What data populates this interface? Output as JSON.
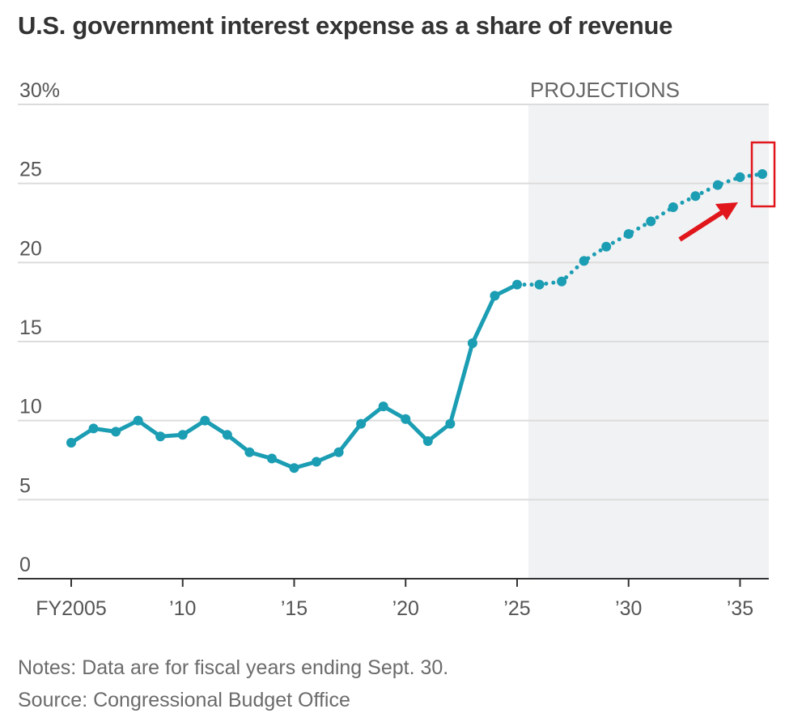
{
  "chart_data": {
    "type": "line",
    "title": "U.S. government interest expense as a share of revenue",
    "x": [
      2005,
      2006,
      2007,
      2008,
      2009,
      2010,
      2011,
      2012,
      2013,
      2014,
      2015,
      2016,
      2017,
      2018,
      2019,
      2020,
      2021,
      2022,
      2023,
      2024,
      2025,
      2026,
      2027,
      2028,
      2029,
      2030,
      2031,
      2032,
      2033,
      2034,
      2035,
      2036
    ],
    "values": [
      8.6,
      9.5,
      9.3,
      10.0,
      9.0,
      9.1,
      10.0,
      9.1,
      8.0,
      7.6,
      7.0,
      7.4,
      8.0,
      9.8,
      10.9,
      10.1,
      8.7,
      9.8,
      14.9,
      17.9,
      18.6,
      18.6,
      18.8,
      20.1,
      21.0,
      21.8,
      22.6,
      23.5,
      24.2,
      24.9,
      25.4,
      25.6
    ],
    "projection_start": 2026,
    "projection_label": "PROJECTIONS",
    "ylim": [
      0,
      30
    ],
    "y_ticks": [
      0,
      5,
      10,
      15,
      20,
      25,
      30
    ],
    "y_tick_labels": [
      "0",
      "5",
      "10",
      "15",
      "20",
      "25",
      "30%"
    ],
    "x_ticks": [
      2005,
      2010,
      2015,
      2020,
      2025,
      2030,
      2035
    ],
    "x_tick_labels": [
      "FY2005",
      "’10",
      "’15",
      "’20",
      "’25",
      "’30",
      "’35"
    ],
    "grid": true,
    "colors": {
      "line": "#1b9db3",
      "projection_bg": "#f1f2f4",
      "annotation": "#e0161b",
      "grid": "#dcdcdc"
    },
    "annotation": "red arrow and box highlighting the 2036 projected value"
  },
  "notes": "Notes: Data are for fiscal years ending Sept. 30.",
  "source": "Source: Congressional Budget Office"
}
